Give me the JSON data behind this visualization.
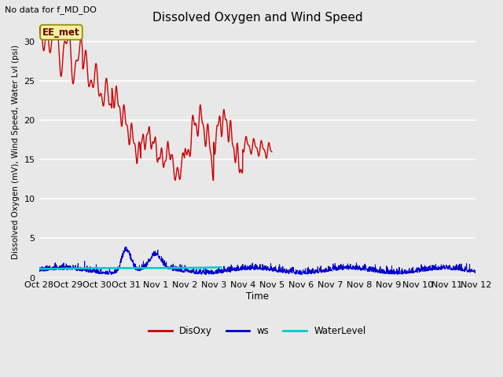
{
  "title": "Dissolved Oxygen and Wind Speed",
  "top_left_text": "No data for f_MD_DO",
  "ylabel": "Dissolved Oxygen (mV), Wind Speed, Water Lvl (psi)",
  "xlabel": "Time",
  "annotation_text": "EE_met",
  "ylim": [
    0,
    32
  ],
  "yticks": [
    0,
    5,
    10,
    15,
    20,
    25,
    30
  ],
  "fig_bg_color": "#e8e8e8",
  "plot_bg_color": "#e8e8e8",
  "grid_color": "#ffffff",
  "xtick_labels": [
    "Oct 28",
    "Oct 29",
    "Oct 30",
    "Oct 31",
    "Nov 1",
    "Nov 2",
    "Nov 3",
    "Nov 4",
    "Nov 5",
    "Nov 6",
    "Nov 7",
    "Nov 8",
    "Nov 9",
    "Nov 10",
    "Nov 11",
    "Nov 12"
  ],
  "disoxy_color": "#cc0000",
  "ws_color": "#0000cc",
  "waterlevel_color": "#00cccc",
  "legend_labels": [
    "DisOxy",
    "ws",
    "WaterLevel"
  ],
  "total_hours": 360
}
